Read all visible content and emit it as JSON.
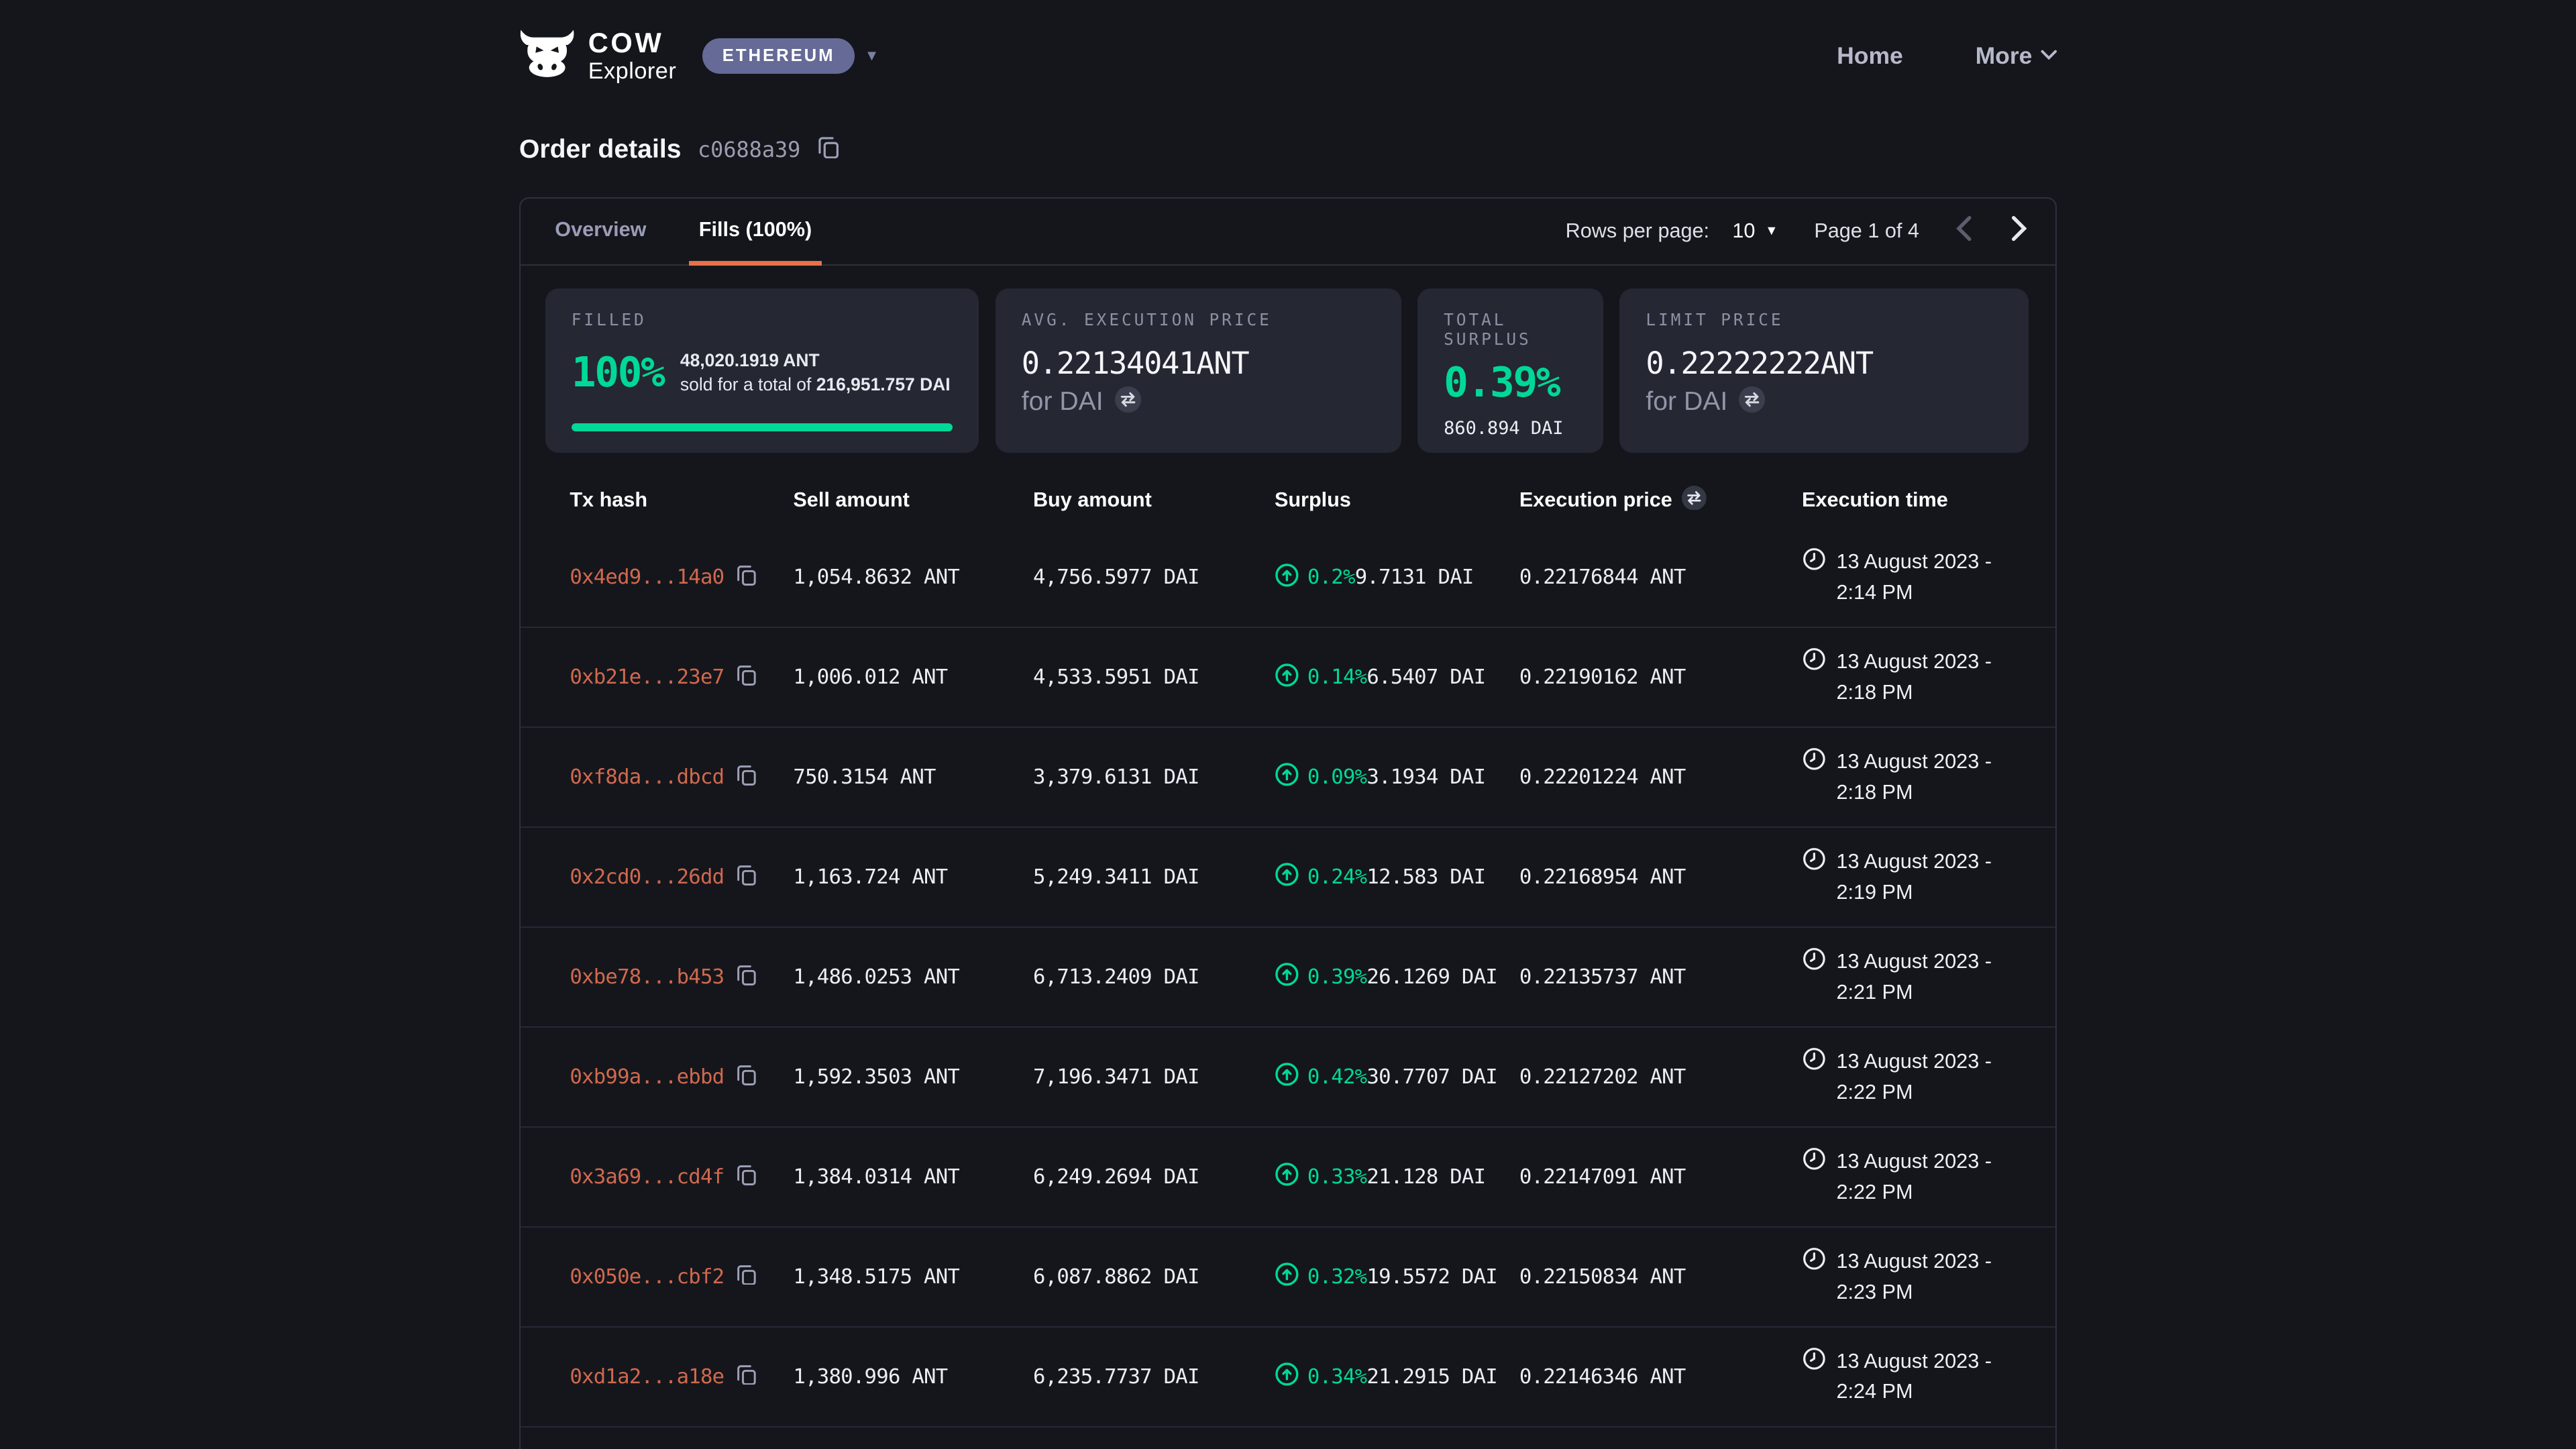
{
  "header": {
    "brand": {
      "name": "COW",
      "subtitle": "Explorer"
    },
    "network_badge": {
      "label": "ETHEREUM"
    },
    "nav": [
      {
        "label": "Home"
      },
      {
        "label": "More"
      }
    ]
  },
  "page": {
    "title": "Order details",
    "order_id_short": "c0688a39"
  },
  "tabs": [
    {
      "label": "Overview",
      "active": false
    },
    {
      "label": "Fills (100%)",
      "active": true
    }
  ],
  "pagination": {
    "rows_per_page_label": "Rows per page:",
    "rows_per_page_value": "10",
    "page_label": "Page 1 of 4"
  },
  "summary_cards": {
    "filled": {
      "label": "FILLED",
      "percent": "100%",
      "progress_percent": 100,
      "amount": "48,020.1919 ANT",
      "sold_prefix": "sold for a total of ",
      "sold_total": "216,951.757 DAI"
    },
    "avg_execution_price": {
      "label": "AVG. EXECUTION PRICE",
      "value": "0.22134041ANT",
      "quote": "for DAI"
    },
    "total_surplus": {
      "label": "TOTAL SURPLUS",
      "percent": "0.39%",
      "amount": "860.894 DAI"
    },
    "limit_price": {
      "label": "LIMIT PRICE",
      "value": "0.22222222ANT",
      "quote": "for DAI"
    }
  },
  "table": {
    "columns": [
      "Tx hash",
      "Sell amount",
      "Buy amount",
      "Surplus",
      "Execution price",
      "Execution time"
    ],
    "rows": [
      {
        "tx_hash": "0x4ed9...14a0",
        "sell_amount": "1,054.8632 ANT",
        "buy_amount": "4,756.5977 DAI",
        "surplus_percent": "0.2%",
        "surplus_amount": "9.7131 DAI",
        "execution_price": "0.22176844 ANT",
        "execution_time": "13 August 2023 - 2:14 PM"
      },
      {
        "tx_hash": "0xb21e...23e7",
        "sell_amount": "1,006.012 ANT",
        "buy_amount": "4,533.5951 DAI",
        "surplus_percent": "0.14%",
        "surplus_amount": "6.5407 DAI",
        "execution_price": "0.22190162 ANT",
        "execution_time": "13 August 2023 - 2:18 PM"
      },
      {
        "tx_hash": "0xf8da...dbcd",
        "sell_amount": "750.3154 ANT",
        "buy_amount": "3,379.6131 DAI",
        "surplus_percent": "0.09%",
        "surplus_amount": "3.1934 DAI",
        "execution_price": "0.22201224 ANT",
        "execution_time": "13 August 2023 - 2:18 PM"
      },
      {
        "tx_hash": "0x2cd0...26dd",
        "sell_amount": "1,163.724 ANT",
        "buy_amount": "5,249.3411 DAI",
        "surplus_percent": "0.24%",
        "surplus_amount": "12.583 DAI",
        "execution_price": "0.22168954 ANT",
        "execution_time": "13 August 2023 - 2:19 PM"
      },
      {
        "tx_hash": "0xbe78...b453",
        "sell_amount": "1,486.0253 ANT",
        "buy_amount": "6,713.2409 DAI",
        "surplus_percent": "0.39%",
        "surplus_amount": "26.1269 DAI",
        "execution_price": "0.22135737 ANT",
        "execution_time": "13 August 2023 - 2:21 PM"
      },
      {
        "tx_hash": "0xb99a...ebbd",
        "sell_amount": "1,592.3503 ANT",
        "buy_amount": "7,196.3471 DAI",
        "surplus_percent": "0.42%",
        "surplus_amount": "30.7707 DAI",
        "execution_price": "0.22127202 ANT",
        "execution_time": "13 August 2023 - 2:22 PM"
      },
      {
        "tx_hash": "0x3a69...cd4f",
        "sell_amount": "1,384.0314 ANT",
        "buy_amount": "6,249.2694 DAI",
        "surplus_percent": "0.33%",
        "surplus_amount": "21.128 DAI",
        "execution_price": "0.22147091 ANT",
        "execution_time": "13 August 2023 - 2:22 PM"
      },
      {
        "tx_hash": "0x050e...cbf2",
        "sell_amount": "1,348.5175 ANT",
        "buy_amount": "6,087.8862 DAI",
        "surplus_percent": "0.32%",
        "surplus_amount": "19.5572 DAI",
        "execution_price": "0.22150834 ANT",
        "execution_time": "13 August 2023 - 2:23 PM"
      },
      {
        "tx_hash": "0xd1a2...a18e",
        "sell_amount": "1,380.996 ANT",
        "buy_amount": "6,235.7737 DAI",
        "surplus_percent": "0.34%",
        "surplus_amount": "21.2915 DAI",
        "execution_price": "0.22146346 ANT",
        "execution_time": "13 August 2023 - 2:24 PM"
      }
    ]
  },
  "colors": {
    "page_bg": "#15161c",
    "card_bg": "#252733",
    "panel_border": "#2e3040",
    "accent_green": "#00d897",
    "tab_accent_orange": "#e8704a",
    "tx_hash_orange": "#d0694e",
    "network_badge_bg": "#656a96",
    "muted_text": "#9295a8"
  }
}
